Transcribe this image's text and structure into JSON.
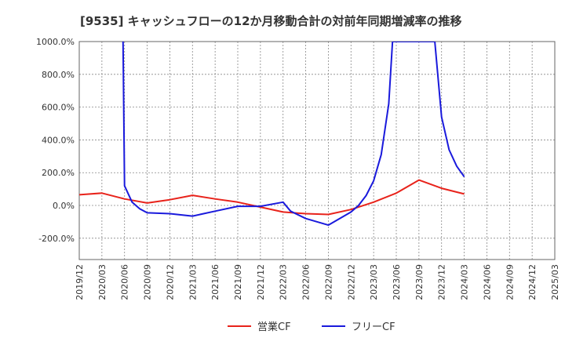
{
  "chart_data": {
    "type": "line",
    "title": "[9535]  キャッシュフローの12か月移動合計の対前年同期増減率の推移",
    "xlabel": "",
    "ylabel": "",
    "ylim": [
      -330,
      1000
    ],
    "yticks": [
      -200,
      0,
      200,
      400,
      600,
      800,
      1000
    ],
    "ytick_labels": [
      "-200.0%",
      "0.0%",
      "200.0%",
      "400.0%",
      "600.0%",
      "800.0%",
      "1000.0%"
    ],
    "xticks": [
      "2019/12",
      "2020/03",
      "2020/06",
      "2020/09",
      "2020/12",
      "2021/03",
      "2021/06",
      "2021/09",
      "2021/12",
      "2022/03",
      "2022/06",
      "2022/09",
      "2022/12",
      "2023/03",
      "2023/06",
      "2023/09",
      "2023/12",
      "2024/03",
      "2024/06",
      "2024/09",
      "2024/12",
      "2025/03"
    ],
    "grid": true,
    "legend_position": "bottom",
    "series": [
      {
        "name": "営業CF",
        "color": "#e8231b",
        "points": [
          [
            0,
            65
          ],
          [
            3,
            75
          ],
          [
            6,
            40
          ],
          [
            9,
            15
          ],
          [
            12,
            35
          ],
          [
            15,
            62
          ],
          [
            18,
            40
          ],
          [
            21,
            20
          ],
          [
            24,
            -10
          ],
          [
            27,
            -40
          ],
          [
            30,
            -50
          ],
          [
            33,
            -55
          ],
          [
            36,
            -25
          ],
          [
            39,
            20
          ],
          [
            42,
            75
          ],
          [
            45,
            155
          ],
          [
            48,
            105
          ],
          [
            51,
            70
          ]
        ]
      },
      {
        "name": "フリーCF",
        "color": "#1a1adc",
        "points": [
          [
            5.8,
            1000
          ],
          [
            6,
            120
          ],
          [
            7,
            20
          ],
          [
            8,
            -20
          ],
          [
            9,
            -45
          ],
          [
            12,
            -50
          ],
          [
            15,
            -65
          ],
          [
            18,
            -35
          ],
          [
            21,
            -5
          ],
          [
            24,
            -5
          ],
          [
            27,
            20
          ],
          [
            28,
            -35
          ],
          [
            30,
            -80
          ],
          [
            33,
            -120
          ],
          [
            36,
            -40
          ],
          [
            37,
            0
          ],
          [
            38,
            60
          ],
          [
            39,
            150
          ],
          [
            40,
            310
          ],
          [
            41,
            620
          ],
          [
            41.5,
            1000
          ],
          [
            47.1,
            1000
          ],
          [
            48,
            540
          ],
          [
            49,
            340
          ],
          [
            50,
            240
          ],
          [
            51,
            175
          ]
        ]
      }
    ]
  }
}
